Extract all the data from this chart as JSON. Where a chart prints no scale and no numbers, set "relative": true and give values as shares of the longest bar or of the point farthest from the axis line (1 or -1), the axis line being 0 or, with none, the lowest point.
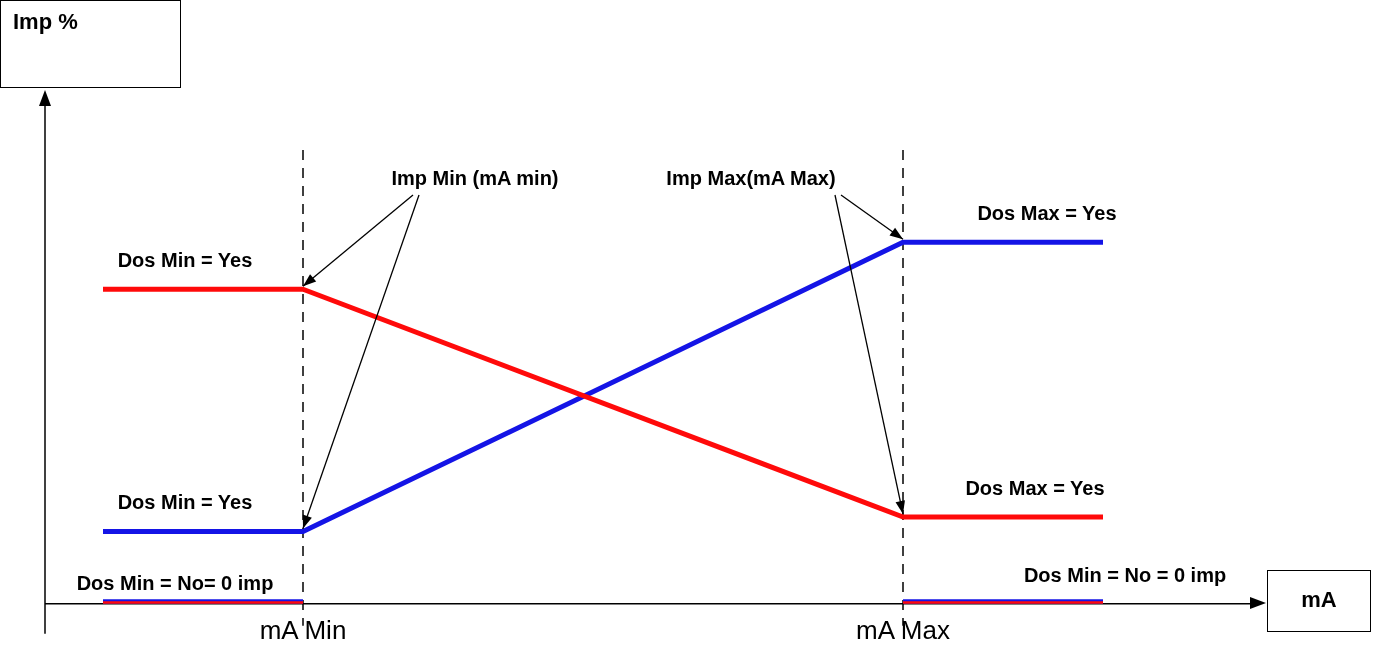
{
  "chart_data": {
    "type": "line",
    "relative": true,
    "xlabel": "mA",
    "categories": [
      null,
      "mA Min",
      null,
      null,
      "mA Max",
      null
    ],
    "series": [
      {
        "color": "#ff0a0a",
        "values": [
          0.87,
          0.87,
          null,
          null,
          0.24,
          0.24
        ]
      },
      {
        "color": "#1414e6",
        "values": [
          0.2,
          0.2,
          null,
          null,
          1,
          1
        ]
      },
      {
        "color": "#ff0a0a",
        "values": [
          0,
          0,
          null,
          null,
          null,
          null
        ]
      },
      {
        "color": "#1414e6",
        "values": [
          0,
          0,
          null,
          null,
          null,
          null
        ]
      },
      {
        "color": "#ff0a0a",
        "values": [
          null,
          null,
          null,
          null,
          0,
          0
        ]
      },
      {
        "color": "#1414e6",
        "values": [
          null,
          null,
          null,
          null,
          0,
          0
        ]
      }
    ],
    "ref_lines": [
      {
        "axis": "x",
        "value": "mA Min",
        "line_style": "dashed",
        "color": "#000000"
      },
      {
        "axis": "x",
        "value": "mA Max",
        "line_style": "dashed",
        "color": "#000000"
      }
    ],
    "annotations": [
      {
        "text": "Dos Min = Yes",
        "y": 0.87
      },
      {
        "text": "Dos Min = Yes",
        "y": 0.2
      },
      {
        "text": "Dos Min = No= 0 imp",
        "y": 0
      },
      "Imp Min (mA min)",
      "Imp Max(mA Max)",
      {
        "text": "Dos Max = Yes",
        "y": 1
      },
      {
        "text": "Dos Max = Yes",
        "y": 0.24
      },
      "Dos Min = No = 0 imp",
      "Imp %"
    ],
    "grid": false,
    "legend": false,
    "marker": "none",
    "line_style": "solid"
  }
}
